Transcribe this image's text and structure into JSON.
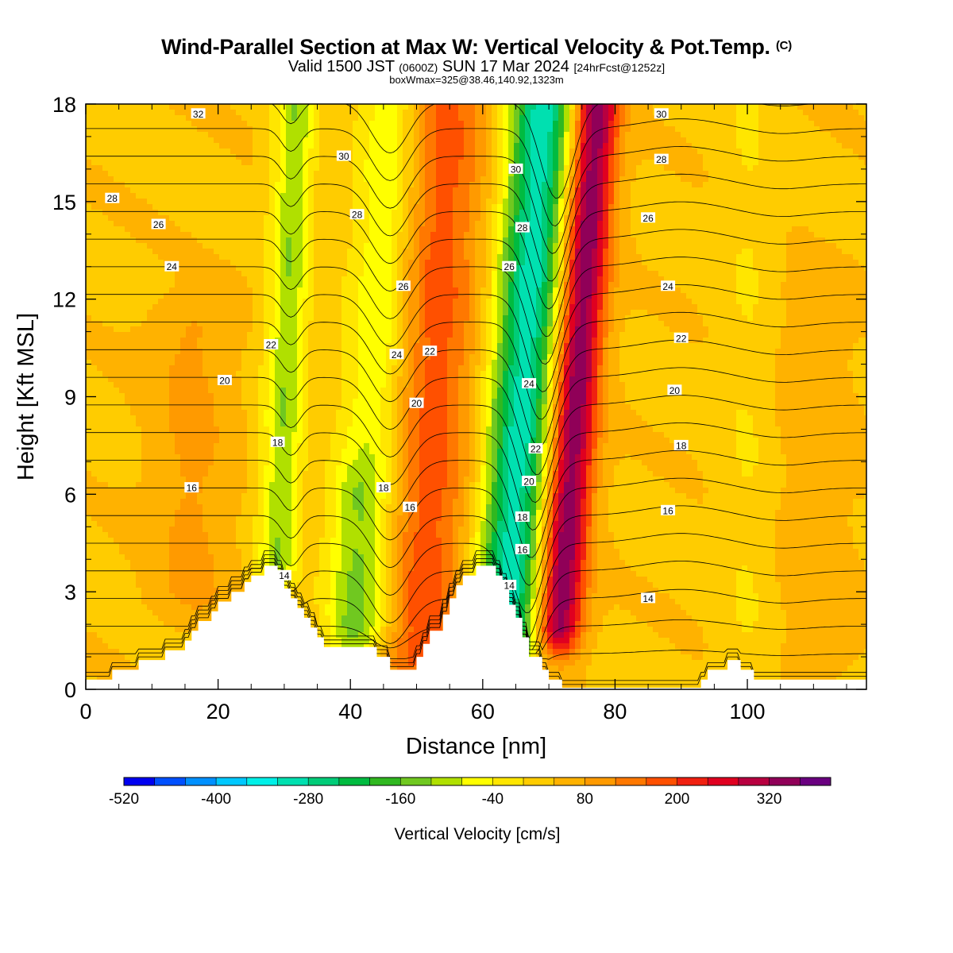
{
  "title": {
    "main": "Wind-Parallel Section at Max W: Vertical Velocity & Pot.Temp.",
    "copyright": "(C)",
    "valid_prefix": "Valid 1500 JST",
    "valid_utc": "(0600Z)",
    "valid_date": "SUN 17 Mar 2024",
    "forecast": "[24hrFcst@1252z]",
    "boxline": "boxWmax=325@38.46,140.92,1323m"
  },
  "chart_data": {
    "type": "heatmap",
    "xlabel": "Distance [nm]",
    "ylabel": "Height [Kft MSL]",
    "xlim": [
      0,
      118
    ],
    "ylim": [
      0,
      18
    ],
    "x_ticks": [
      "0",
      "20",
      "40",
      "60",
      "80",
      "100"
    ],
    "x_tick_values": [
      0,
      20,
      40,
      60,
      80,
      100
    ],
    "y_ticks": [
      "0",
      "3",
      "6",
      "9",
      "12",
      "15",
      "18"
    ],
    "y_tick_values": [
      0,
      3,
      6,
      9,
      12,
      15,
      18
    ],
    "colorbar": {
      "label": "Vertical Velocity [cm/s]",
      "min": -520,
      "max": 400,
      "step": 40,
      "tick_labels": [
        "-520",
        "-400",
        "-280",
        "-160",
        "-40",
        "80",
        "200",
        "320"
      ],
      "tick_values": [
        -520,
        -400,
        -280,
        -160,
        -40,
        80,
        200,
        320
      ],
      "colors": [
        "#0000f0",
        "#0050ff",
        "#0090ff",
        "#00c8ff",
        "#00f0e8",
        "#00e0b0",
        "#00cc78",
        "#00bb40",
        "#30b820",
        "#70c820",
        "#b0e000",
        "#ffff00",
        "#ffe600",
        "#ffcc00",
        "#ffb200",
        "#ff9a00",
        "#ff7800",
        "#ff5000",
        "#f02010",
        "#e00020",
        "#b80040",
        "#900058",
        "#6a0080"
      ]
    },
    "vertical_velocity_features": [
      {
        "x_center": 30,
        "width": 3,
        "peak_cms": -150,
        "top_kft": 18,
        "bottom_kft": 4,
        "tilt_nm_per_kft": 0.2
      },
      {
        "x_center": 44,
        "width": 5,
        "peak_cms": -140,
        "top_kft": 18,
        "bottom_kft": 2,
        "tilt_nm_per_kft": 0.3
      },
      {
        "x_center": 52,
        "width": 7,
        "peak_cms": 150,
        "top_kft": 18,
        "bottom_kft": 1,
        "tilt_nm_per_kft": 0.2
      },
      {
        "x_center": 66,
        "width": 5,
        "peak_cms": -340,
        "top_kft": 18,
        "bottom_kft": 1.5,
        "tilt_nm_per_kft": 0.35
      },
      {
        "x_center": 74,
        "width": 3.5,
        "peak_cms": 330,
        "top_kft": 18,
        "bottom_kft": 2,
        "tilt_nm_per_kft": 0.35
      },
      {
        "x_center": 16,
        "width": 6,
        "peak_cms": 55,
        "top_kft": 11,
        "bottom_kft": 3,
        "tilt_nm_per_kft": 0
      },
      {
        "x_center": 40,
        "width": 4,
        "peak_cms": -60,
        "top_kft": 6,
        "bottom_kft": 1,
        "tilt_nm_per_kft": 0
      },
      {
        "x_center": 100,
        "width": 4,
        "peak_cms": -35,
        "top_kft": 18,
        "bottom_kft": 0,
        "tilt_nm_per_kft": 0
      },
      {
        "x_center": 110,
        "width": 6,
        "peak_cms": 30,
        "top_kft": 12,
        "bottom_kft": 1,
        "tilt_nm_per_kft": 0
      }
    ],
    "terrain_kft": [
      [
        0,
        0.3
      ],
      [
        4,
        0.3
      ],
      [
        4,
        0.6
      ],
      [
        8,
        0.6
      ],
      [
        8,
        0.9
      ],
      [
        12,
        0.9
      ],
      [
        12,
        1.2
      ],
      [
        15,
        1.2
      ],
      [
        15,
        1.5
      ],
      [
        16,
        1.5
      ],
      [
        16,
        1.8
      ],
      [
        17,
        1.8
      ],
      [
        17,
        2.1
      ],
      [
        19,
        2.1
      ],
      [
        19,
        2.4
      ],
      [
        20,
        2.4
      ],
      [
        20,
        2.7
      ],
      [
        22,
        2.7
      ],
      [
        22,
        3.0
      ],
      [
        24,
        3.0
      ],
      [
        24,
        3.3
      ],
      [
        25,
        3.3
      ],
      [
        25,
        3.5
      ],
      [
        27,
        3.5
      ],
      [
        27,
        3.8
      ],
      [
        29,
        3.8
      ],
      [
        29,
        3.5
      ],
      [
        30,
        3.5
      ],
      [
        30,
        3.1
      ],
      [
        31,
        3.1
      ],
      [
        31,
        2.8
      ],
      [
        32,
        2.8
      ],
      [
        32,
        2.5
      ],
      [
        33,
        2.5
      ],
      [
        33,
        2.2
      ],
      [
        34,
        2.2
      ],
      [
        34,
        1.9
      ],
      [
        35,
        1.9
      ],
      [
        35,
        1.6
      ],
      [
        36,
        1.6
      ],
      [
        36,
        1.3
      ],
      [
        44,
        1.3
      ],
      [
        44,
        1.0
      ],
      [
        46,
        1.0
      ],
      [
        46,
        0.6
      ],
      [
        50,
        0.6
      ],
      [
        50,
        1.0
      ],
      [
        51,
        1.0
      ],
      [
        51,
        1.4
      ],
      [
        52,
        1.4
      ],
      [
        52,
        1.8
      ],
      [
        54,
        1.8
      ],
      [
        54,
        2.3
      ],
      [
        55,
        2.3
      ],
      [
        55,
        2.8
      ],
      [
        56,
        2.8
      ],
      [
        56,
        3.2
      ],
      [
        57,
        3.2
      ],
      [
        57,
        3.5
      ],
      [
        59,
        3.5
      ],
      [
        59,
        3.8
      ],
      [
        62,
        3.8
      ],
      [
        62,
        3.5
      ],
      [
        63,
        3.5
      ],
      [
        63,
        3.1
      ],
      [
        64,
        3.1
      ],
      [
        64,
        2.6
      ],
      [
        65,
        2.6
      ],
      [
        65,
        2.2
      ],
      [
        66,
        2.2
      ],
      [
        66,
        1.6
      ],
      [
        67,
        1.6
      ],
      [
        67,
        1.0
      ],
      [
        69,
        1.0
      ],
      [
        69,
        0.6
      ],
      [
        70,
        0.6
      ],
      [
        70,
        0.3
      ],
      [
        72,
        0.3
      ],
      [
        72,
        0.05
      ],
      [
        93,
        0.05
      ],
      [
        93,
        0.3
      ],
      [
        94,
        0.3
      ],
      [
        94,
        0.6
      ],
      [
        97,
        0.6
      ],
      [
        97,
        0.9
      ],
      [
        99,
        0.9
      ],
      [
        99,
        0.6
      ],
      [
        101,
        0.6
      ],
      [
        101,
        0.3
      ],
      [
        118,
        0.3
      ]
    ],
    "theta_contours": {
      "label_unit": "degC",
      "base_levels": [
        12,
        34
      ],
      "interval": 1,
      "labels": [
        {
          "text": "32",
          "x": 17,
          "y": 17.7
        },
        {
          "text": "30",
          "x": 39,
          "y": 16.4
        },
        {
          "text": "28",
          "x": 4,
          "y": 15.1
        },
        {
          "text": "28",
          "x": 41,
          "y": 14.6
        },
        {
          "text": "26",
          "x": 11,
          "y": 14.3
        },
        {
          "text": "24",
          "x": 13,
          "y": 13.0
        },
        {
          "text": "26",
          "x": 48,
          "y": 12.4
        },
        {
          "text": "22",
          "x": 28,
          "y": 10.6
        },
        {
          "text": "24",
          "x": 47,
          "y": 10.3
        },
        {
          "text": "22",
          "x": 52,
          "y": 10.4
        },
        {
          "text": "20",
          "x": 21,
          "y": 9.5
        },
        {
          "text": "20",
          "x": 50,
          "y": 8.8
        },
        {
          "text": "18",
          "x": 29,
          "y": 7.6
        },
        {
          "text": "16",
          "x": 16,
          "y": 6.2
        },
        {
          "text": "18",
          "x": 45,
          "y": 6.2
        },
        {
          "text": "16",
          "x": 49,
          "y": 5.6
        },
        {
          "text": "14",
          "x": 30,
          "y": 3.5
        },
        {
          "text": "30",
          "x": 65,
          "y": 16.0
        },
        {
          "text": "28",
          "x": 66,
          "y": 14.2
        },
        {
          "text": "26",
          "x": 64,
          "y": 13.0
        },
        {
          "text": "24",
          "x": 67,
          "y": 9.4
        },
        {
          "text": "22",
          "x": 68,
          "y": 7.4
        },
        {
          "text": "20",
          "x": 67,
          "y": 6.4
        },
        {
          "text": "18",
          "x": 66,
          "y": 5.3
        },
        {
          "text": "16",
          "x": 66,
          "y": 4.3
        },
        {
          "text": "14",
          "x": 64,
          "y": 3.2
        },
        {
          "text": "30",
          "x": 87,
          "y": 17.7
        },
        {
          "text": "28",
          "x": 87,
          "y": 16.3
        },
        {
          "text": "26",
          "x": 85,
          "y": 14.5
        },
        {
          "text": "24",
          "x": 88,
          "y": 12.4
        },
        {
          "text": "22",
          "x": 90,
          "y": 10.8
        },
        {
          "text": "20",
          "x": 89,
          "y": 9.2
        },
        {
          "text": "18",
          "x": 90,
          "y": 7.5
        },
        {
          "text": "16",
          "x": 88,
          "y": 5.5
        },
        {
          "text": "14",
          "x": 85,
          "y": 2.8
        }
      ]
    }
  }
}
